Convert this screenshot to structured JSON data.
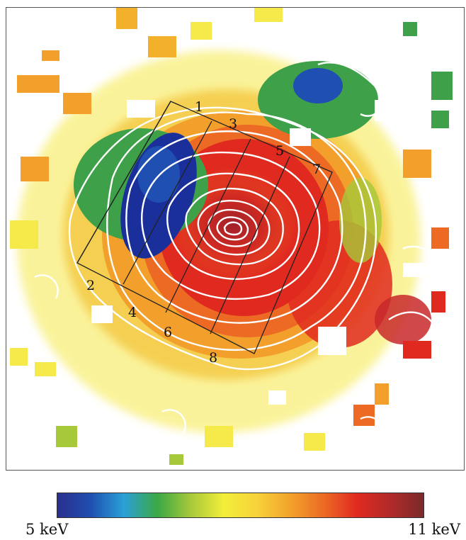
{
  "image": {
    "description_kind": "temperature-map-with-surface-brightness-contours",
    "colors": {
      "cool": "#1b2f9a",
      "green": "#3fa04a",
      "yellow": "#f5e83a",
      "orange": "#f2a22a",
      "red": "#e02a20",
      "hot": "#a8242c",
      "contour": "#ffffff",
      "grid": "#222222"
    }
  },
  "regions": [
    {
      "label": "1"
    },
    {
      "label": "2"
    },
    {
      "label": "3"
    },
    {
      "label": "4"
    },
    {
      "label": "5"
    },
    {
      "label": "6"
    },
    {
      "label": "7"
    },
    {
      "label": "8"
    }
  ],
  "colorbar": {
    "min_label": "5 keV",
    "max_label": "11 keV",
    "stops": [
      "#2a2f8f",
      "#1f4fb0",
      "#2aa0d8",
      "#3aa845",
      "#a6c83a",
      "#f3ee3a",
      "#f7d23a",
      "#f3a22c",
      "#ec6a24",
      "#e02a20",
      "#b22a2a",
      "#7a2a2a"
    ]
  }
}
